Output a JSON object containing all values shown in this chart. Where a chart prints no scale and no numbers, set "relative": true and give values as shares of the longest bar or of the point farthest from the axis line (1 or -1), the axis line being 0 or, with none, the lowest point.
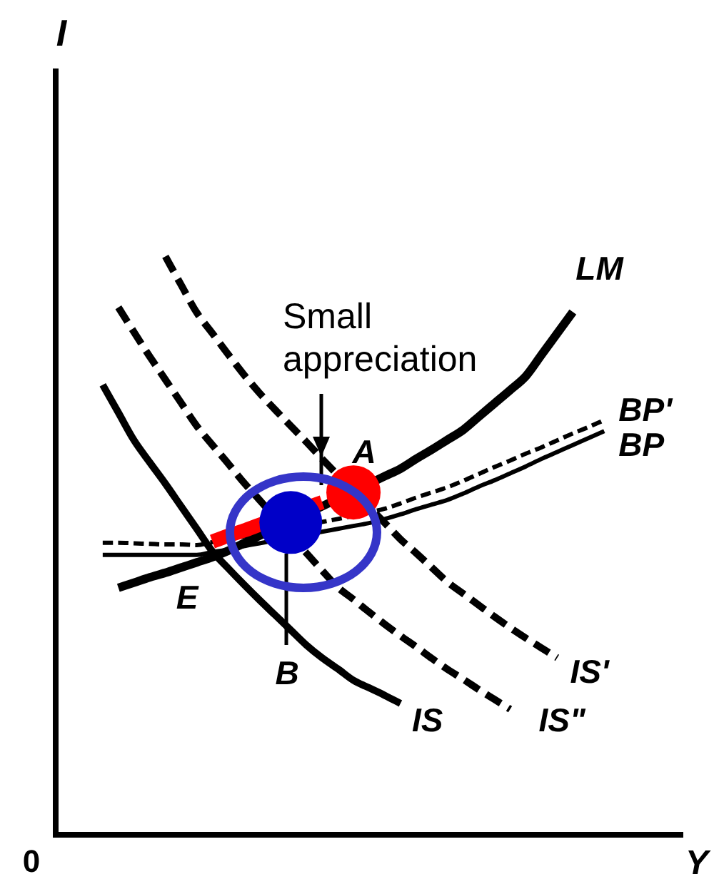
{
  "chart_data": {
    "type": "line",
    "relative": true,
    "xlabel": "Y",
    "categories": [
      null,
      null,
      null,
      null,
      null,
      null,
      null,
      null,
      null,
      null,
      null,
      null,
      null,
      null,
      null,
      null,
      null,
      null,
      null,
      null,
      null,
      null,
      null,
      null,
      null,
      null,
      null,
      null,
      null,
      null,
      null,
      null,
      null,
      null,
      null,
      null,
      null,
      null,
      null,
      null,
      null
    ],
    "series": [
      {
        "name": "LM",
        "line_style": "solid",
        "color": "#000000",
        "values": [
          null,
          null,
          null,
          null,
          0.427,
          0.436,
          0.445,
          0.453,
          0.462,
          0.471,
          0.48,
          0.491,
          0.504,
          0.517,
          null,
          null,
          null,
          0.568,
          null,
          null,
          null,
          0.62,
          0.633,
          0.65,
          0.666,
          0.683,
          0.7,
          0.723,
          0.746,
          0.769,
          0.793,
          0.83,
          0.867,
          0.904,
          null,
          null,
          null,
          null,
          null,
          null,
          null
        ]
      },
      {
        "name": "BP'",
        "line_style": "dashed",
        "color": "#000000",
        "values": [
          null,
          null,
          null,
          0.505,
          0.505,
          0.504,
          0.503,
          0.502,
          0.502,
          0.501,
          0.506,
          0.511,
          0.516,
          0.521,
          null,
          null,
          null,
          0.541,
          0.546,
          null,
          null,
          0.564,
          0.573,
          0.583,
          0.592,
          0.601,
          0.612,
          0.624,
          0.636,
          0.647,
          0.659,
          0.67,
          0.682,
          0.694,
          0.705,
          0.717,
          null,
          null,
          null,
          null,
          null
        ]
      },
      {
        "name": "BP",
        "line_style": "solid",
        "color": "#000000",
        "values": [
          null,
          null,
          null,
          0.484,
          0.484,
          0.484,
          0.484,
          0.484,
          0.484,
          0.484,
          0.489,
          0.493,
          0.499,
          0.504,
          null,
          null,
          null,
          0.524,
          0.529,
          0.534,
          0.539,
          0.546,
          0.554,
          0.563,
          0.571,
          0.579,
          0.59,
          0.602,
          0.613,
          0.625,
          0.637,
          0.65,
          0.662,
          0.674,
          0.686,
          0.698,
          null,
          null,
          null,
          null,
          null
        ]
      },
      {
        "name": "IS'",
        "line_style": "dashed",
        "color": "#000000",
        "values": [
          null,
          null,
          null,
          null,
          null,
          null,
          null,
          1,
          0.951,
          0.903,
          0.867,
          0.831,
          0.796,
          0.764,
          0.735,
          0.707,
          0.679,
          0.65,
          null,
          null,
          null,
          0.539,
          0.511,
          0.487,
          0.462,
          0.437,
          0.417,
          0.397,
          0.377,
          0.358,
          0.34,
          0.323,
          0.306,
          null,
          null,
          null,
          null,
          null,
          null,
          null,
          null
        ]
      },
      {
        "name": "IS\"",
        "line_style": "dashed",
        "color": "#000000",
        "values": [
          null,
          null,
          null,
          null,
          0.912,
          0.869,
          0.827,
          0.787,
          0.747,
          0.707,
          0.674,
          0.642,
          0.609,
          0.579,
          null,
          null,
          0.487,
          0.457,
          0.428,
          0.407,
          0.385,
          0.364,
          0.344,
          0.325,
          0.305,
          0.286,
          0.269,
          0.251,
          0.234,
          0.217,
          null,
          null,
          null,
          null,
          null,
          null,
          null,
          null,
          null,
          null,
          null
        ]
      },
      {
        "name": "IS",
        "line_style": "solid",
        "color": "#000000",
        "values": [
          null,
          null,
          null,
          0.778,
          0.73,
          0.682,
          0.644,
          0.607,
          0.568,
          0.529,
          0.49,
          0.461,
          0.433,
          0.406,
          0.38,
          0.354,
          0.328,
          0.306,
          0.287,
          0.267,
          0.254,
          0.241,
          0.227,
          null,
          null,
          null,
          null,
          null,
          null,
          null,
          null,
          null,
          null,
          null,
          null,
          null,
          null,
          null,
          null,
          null,
          null
        ]
      },
      {
        "line_style": "solid",
        "color": "#ff0000",
        "values": [
          null,
          null,
          null,
          null,
          null,
          null,
          null,
          null,
          null,
          null,
          0.507,
          0.517,
          0.526,
          0.536,
          null,
          null,
          null,
          0.575,
          null,
          null,
          null,
          null,
          null,
          null,
          null,
          null,
          null,
          null,
          null,
          null,
          null,
          null,
          null,
          null,
          null,
          null,
          null,
          null,
          null,
          null,
          null
        ]
      },
      {
        "marker": "circle",
        "color": "#ff0000",
        "values": [
          null,
          null,
          null,
          null,
          null,
          null,
          null,
          null,
          null,
          null,
          null,
          null,
          null,
          null,
          null,
          null,
          null,
          null,
          null,
          0.592,
          null,
          null,
          null,
          null,
          null,
          null,
          null,
          null,
          null,
          null,
          null,
          null,
          null,
          null,
          null,
          null,
          null,
          null,
          null,
          null,
          null
        ]
      },
      {
        "marker": "circle",
        "color": "#0000c8",
        "values": [
          null,
          null,
          null,
          null,
          null,
          null,
          null,
          null,
          null,
          null,
          null,
          null,
          null,
          null,
          null,
          0.54,
          null,
          null,
          null,
          null,
          null,
          null,
          null,
          null,
          null,
          null,
          null,
          null,
          null,
          null,
          null,
          null,
          null,
          null,
          null,
          null,
          null,
          null,
          null,
          null,
          null
        ]
      }
    ],
    "annotations": [
      "Small appreciation",
      "E",
      "A",
      "B",
      "0",
      "I"
    ]
  }
}
